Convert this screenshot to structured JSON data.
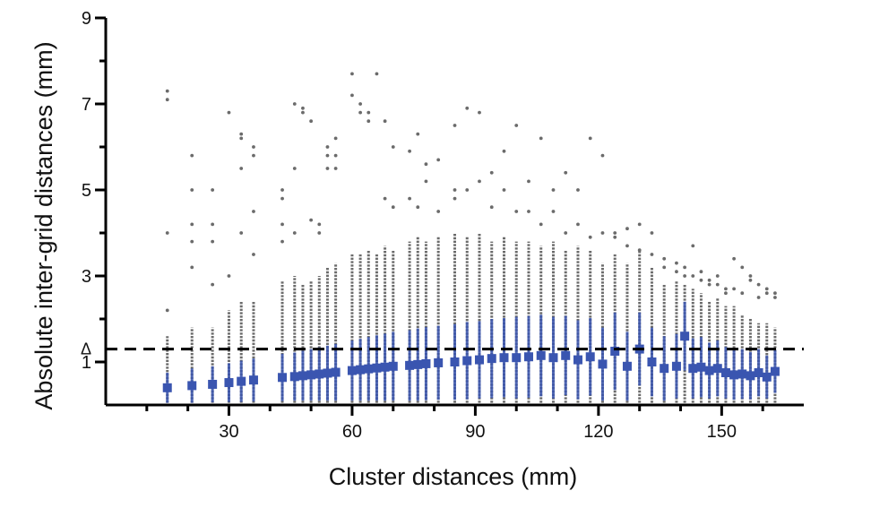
{
  "chart_data": {
    "type": "scatter",
    "title": "",
    "xlabel": "Cluster distances (mm)",
    "ylabel": "Absolute inter-grid distances (mm)",
    "xlim": [
      0,
      170
    ],
    "ylim": [
      0,
      9
    ],
    "xticks": [
      "30",
      "60",
      "90",
      "120",
      "150"
    ],
    "xtick_values": [
      30,
      60,
      90,
      120,
      150
    ],
    "yticks": [
      "1",
      "3",
      "5",
      "7",
      "9"
    ],
    "ytick_values": [
      1,
      3,
      5,
      7,
      9
    ],
    "legend": "none",
    "grid": false,
    "reference_line": {
      "y": 1.3,
      "style": "dashed",
      "marker": "Δ"
    },
    "colors": {
      "raw_points": "#6b6b6b",
      "mean_markers": "#3a55b0",
      "axes": "#000000"
    },
    "series": [
      {
        "kind": "mean_with_error",
        "x": [
          15,
          21,
          26,
          30,
          33,
          36,
          43,
          46,
          48,
          50,
          52,
          54,
          56,
          60,
          62,
          64,
          66,
          68,
          70,
          74,
          76,
          78,
          81,
          85,
          88,
          91,
          94,
          97,
          100,
          103,
          106,
          109,
          112,
          115,
          118,
          121,
          124,
          127,
          130,
          133,
          136,
          139,
          141,
          143,
          145,
          147,
          149,
          151,
          153,
          155,
          157,
          159,
          161,
          163
        ],
        "y": [
          0.4,
          0.45,
          0.48,
          0.52,
          0.55,
          0.58,
          0.64,
          0.66,
          0.68,
          0.7,
          0.72,
          0.74,
          0.76,
          0.8,
          0.82,
          0.84,
          0.86,
          0.88,
          0.9,
          0.92,
          0.94,
          0.96,
          0.98,
          1.0,
          1.03,
          1.05,
          1.08,
          1.1,
          1.1,
          1.12,
          1.15,
          1.1,
          1.15,
          1.05,
          1.12,
          0.95,
          1.25,
          0.9,
          1.3,
          1.0,
          0.85,
          0.9,
          1.6,
          0.85,
          0.88,
          0.8,
          0.85,
          0.75,
          0.7,
          0.72,
          0.68,
          0.75,
          0.65,
          0.78
        ],
        "error": [
          0.35,
          0.4,
          0.42,
          0.45,
          0.48,
          0.5,
          0.55,
          0.56,
          0.58,
          0.6,
          0.62,
          0.64,
          0.66,
          0.7,
          0.72,
          0.74,
          0.76,
          0.78,
          0.8,
          0.82,
          0.84,
          0.85,
          0.86,
          0.88,
          0.9,
          0.9,
          0.92,
          0.92,
          0.95,
          0.95,
          0.95,
          0.95,
          0.92,
          0.92,
          0.9,
          0.85,
          0.9,
          0.8,
          0.85,
          0.8,
          0.75,
          0.75,
          0.8,
          0.7,
          0.7,
          0.65,
          0.65,
          0.6,
          0.58,
          0.58,
          0.55,
          0.55,
          0.5,
          0.5
        ]
      },
      {
        "kind": "raw_distribution",
        "x": [
          15,
          21,
          26,
          30,
          33,
          36,
          43,
          46,
          48,
          50,
          52,
          54,
          56,
          60,
          62,
          64,
          66,
          68,
          70,
          74,
          76,
          78,
          81,
          85,
          88,
          91,
          94,
          97,
          100,
          103,
          106,
          109,
          112,
          115,
          118,
          121,
          124,
          127,
          130,
          133,
          136,
          139,
          141,
          143,
          145,
          147,
          149,
          151,
          153,
          155,
          157,
          159,
          161,
          163
        ],
        "dense_max": [
          1.6,
          1.8,
          1.8,
          2.2,
          2.4,
          2.4,
          2.9,
          3.0,
          2.8,
          2.9,
          3.0,
          3.2,
          3.3,
          3.5,
          3.5,
          3.6,
          3.5,
          3.7,
          3.6,
          3.8,
          3.9,
          3.8,
          3.9,
          4.0,
          3.9,
          4.0,
          3.8,
          3.9,
          3.8,
          3.8,
          3.7,
          3.8,
          3.6,
          3.7,
          3.6,
          3.3,
          3.5,
          3.3,
          3.6,
          3.2,
          2.8,
          2.9,
          2.8,
          2.7,
          2.6,
          2.4,
          2.5,
          2.3,
          2.3,
          2.1,
          2.0,
          1.9,
          1.9,
          1.8
        ],
        "outliers": [
          [
            7.3,
            7.1,
            4.0,
            2.2
          ],
          [
            5.8,
            5.0,
            4.2,
            3.8,
            3.2
          ],
          [
            5.0,
            4.2,
            3.8,
            2.8
          ],
          [
            6.8,
            3.0
          ],
          [
            6.3,
            6.2,
            5.5,
            4.0
          ],
          [
            6.0,
            5.8,
            4.5,
            3.5
          ],
          [
            5.0,
            4.2,
            4.8,
            3.8
          ],
          [
            7.0,
            5.5,
            4.0
          ],
          [
            6.8,
            6.9
          ],
          [
            6.6,
            4.3
          ],
          [
            4.2,
            4.0
          ],
          [
            6.0,
            5.8,
            5.5
          ],
          [
            6.2,
            5.8,
            5.5
          ],
          [
            7.7,
            7.2
          ],
          [
            7.0,
            6.8
          ],
          [
            6.8,
            6.6
          ],
          [
            7.7
          ],
          [
            6.6,
            4.8
          ],
          [
            6.0,
            4.6
          ],
          [
            5.9,
            4.8
          ],
          [
            6.3,
            4.6
          ],
          [
            5.6,
            5.2
          ],
          [
            5.7,
            4.5
          ],
          [
            6.5,
            5.0,
            4.8
          ],
          [
            6.9,
            5.0
          ],
          [
            6.8,
            5.2
          ],
          [
            5.4,
            4.6
          ],
          [
            5.9,
            5.0
          ],
          [
            6.5,
            4.5
          ],
          [
            5.2,
            4.5
          ],
          [
            6.2,
            4.2
          ],
          [
            5.0,
            4.5
          ],
          [
            5.4,
            4.0
          ],
          [
            5.0,
            4.2
          ],
          [
            6.2,
            3.9
          ],
          [
            5.8,
            4.0
          ],
          [
            4.0,
            3.9
          ],
          [
            4.1,
            3.7
          ],
          [
            4.2,
            3.6
          ],
          [
            4.0,
            3.5
          ],
          [
            3.4,
            3.2
          ],
          [
            3.3,
            3.1
          ],
          [
            3.2,
            3.0
          ],
          [
            3.7,
            3.0
          ],
          [
            3.1,
            2.9
          ],
          [
            2.9,
            2.8
          ],
          [
            3.0,
            2.8
          ],
          [
            2.7,
            2.6
          ],
          [
            3.4,
            2.7
          ],
          [
            3.2,
            2.6
          ],
          [
            3.0,
            2.9
          ],
          [
            2.8,
            2.5
          ],
          [
            2.7,
            2.6
          ],
          [
            2.6,
            2.5
          ]
        ]
      }
    ]
  }
}
